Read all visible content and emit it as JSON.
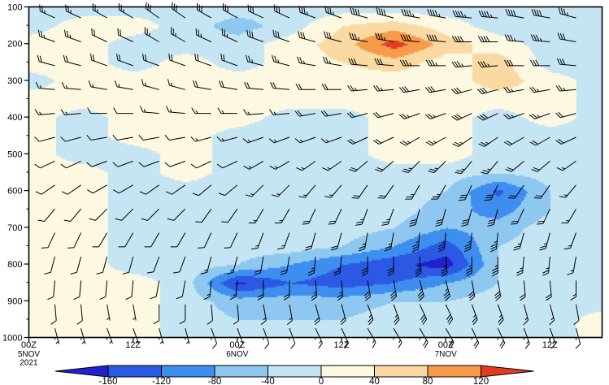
{
  "figure": {
    "background": "#ffffff",
    "frame_color": "#000000",
    "barb_color": "#000000"
  },
  "chart_data": {
    "type": "heatmap",
    "title": "",
    "xlabel": "",
    "ylabel": "",
    "x_range_hours": [
      0,
      66
    ],
    "y_range_pressure_hpa": [
      100,
      1000
    ],
    "x_minor_step_hours": 3,
    "legend_position": "bottom",
    "grid": false,
    "x_ticks": [
      {
        "hour": 0,
        "label": "00Z",
        "sub": [
          "5NOV",
          "2021"
        ]
      },
      {
        "hour": 12,
        "label": "12Z",
        "sub": []
      },
      {
        "hour": 24,
        "label": "00Z",
        "sub": [
          "6NOV"
        ]
      },
      {
        "hour": 36,
        "label": "12Z",
        "sub": []
      },
      {
        "hour": 48,
        "label": "00Z",
        "sub": [
          "7NOV"
        ]
      },
      {
        "hour": 60,
        "label": "12Z",
        "sub": []
      }
    ],
    "y_ticks": [
      "100",
      "200",
      "300",
      "400",
      "500",
      "600",
      "700",
      "800",
      "900",
      "1000"
    ],
    "x_hours": [
      0,
      6,
      12,
      18,
      24,
      30,
      36,
      42,
      48,
      54,
      60,
      66
    ],
    "pressure_levels": [
      100,
      150,
      200,
      250,
      300,
      350,
      400,
      450,
      500,
      550,
      600,
      650,
      700,
      750,
      800,
      850,
      900,
      950,
      1000
    ],
    "values": [
      [
        -20,
        -20,
        -20,
        -20,
        -20,
        -20,
        -20,
        -20,
        -20,
        -20,
        -20,
        -20
      ],
      [
        -20,
        20,
        20,
        -20,
        -60,
        -20,
        40,
        60,
        20,
        -20,
        -20,
        -20
      ],
      [
        20,
        20,
        -20,
        -20,
        -20,
        20,
        60,
        140,
        60,
        20,
        -20,
        -20
      ],
      [
        20,
        20,
        -20,
        20,
        -20,
        20,
        40,
        60,
        20,
        60,
        -20,
        -20
      ],
      [
        -20,
        20,
        20,
        20,
        20,
        20,
        20,
        20,
        20,
        60,
        20,
        -20
      ],
      [
        20,
        20,
        20,
        20,
        20,
        20,
        20,
        20,
        20,
        20,
        20,
        -20
      ],
      [
        20,
        -20,
        20,
        20,
        20,
        -20,
        -20,
        20,
        20,
        -20,
        20,
        -20
      ],
      [
        20,
        -20,
        20,
        20,
        -20,
        -20,
        -20,
        20,
        20,
        -20,
        -20,
        -20
      ],
      [
        20,
        -20,
        -20,
        20,
        -20,
        -20,
        -20,
        20,
        20,
        -20,
        -20,
        -20
      ],
      [
        20,
        20,
        -20,
        20,
        -20,
        -20,
        -20,
        -20,
        -20,
        -40,
        -20,
        -20
      ],
      [
        20,
        20,
        -20,
        -20,
        -20,
        -20,
        -20,
        -20,
        -40,
        -130,
        -40,
        -20
      ],
      [
        20,
        20,
        -20,
        -20,
        -20,
        -20,
        -20,
        -20,
        -60,
        -100,
        -40,
        -20
      ],
      [
        20,
        20,
        -20,
        -20,
        -20,
        -20,
        -20,
        -40,
        -80,
        -60,
        -20,
        -20
      ],
      [
        20,
        20,
        -20,
        -20,
        -20,
        -20,
        -40,
        -80,
        -140,
        -40,
        -20,
        -20
      ],
      [
        20,
        20,
        -20,
        -20,
        -40,
        -80,
        -120,
        -150,
        -180,
        -40,
        -20,
        -20
      ],
      [
        20,
        20,
        20,
        -20,
        -170,
        -120,
        -140,
        -120,
        -80,
        -40,
        -20,
        -20
      ],
      [
        20,
        20,
        20,
        -20,
        -60,
        -60,
        -60,
        -40,
        -40,
        -20,
        -20,
        -20
      ],
      [
        20,
        20,
        20,
        -20,
        -40,
        -40,
        -40,
        -20,
        -20,
        -20,
        -20,
        20
      ],
      [
        20,
        20,
        20,
        -20,
        -20,
        -20,
        -20,
        -20,
        -20,
        -20,
        -20,
        20
      ]
    ],
    "colorbar": {
      "boundaries": [
        -160,
        -120,
        -80,
        -40,
        0,
        40,
        80,
        120
      ],
      "labels": [
        "-160",
        "-120",
        "-80",
        "-40",
        "0",
        "40",
        "80",
        "120"
      ],
      "colors": [
        "#2121cd",
        "#2b59e3",
        "#3e8ef0",
        "#8ec8f0",
        "#c6e5f4",
        "#fdf8e1",
        "#fad9a2",
        "#f79a4a",
        "#e33d21"
      ]
    },
    "wind": {
      "units": "kt",
      "levels": [
        130,
        195,
        260,
        325,
        390,
        455,
        520,
        585,
        650,
        715,
        780,
        845,
        910,
        975
      ],
      "columns": [
        {
          "hour": 3,
          "barbs": [
            [
              295,
              25
            ],
            [
              290,
              25
            ],
            [
              285,
              20
            ],
            [
              275,
              15
            ],
            [
              265,
              15
            ],
            [
              255,
              10
            ],
            [
              245,
              10
            ],
            [
              235,
              10
            ],
            [
              220,
              10
            ],
            [
              205,
              10
            ],
            [
              195,
              10
            ],
            [
              185,
              10
            ],
            [
              175,
              10
            ],
            [
              165,
              5
            ]
          ]
        },
        {
          "hour": 9,
          "barbs": [
            [
              300,
              25
            ],
            [
              295,
              20
            ],
            [
              290,
              20
            ],
            [
              280,
              15
            ],
            [
              270,
              10
            ],
            [
              260,
              10
            ],
            [
              250,
              10
            ],
            [
              240,
              10
            ],
            [
              225,
              10
            ],
            [
              210,
              10
            ],
            [
              195,
              10
            ],
            [
              185,
              10
            ],
            [
              170,
              5
            ],
            [
              160,
              5
            ]
          ]
        },
        {
          "hour": 15,
          "barbs": [
            [
              305,
              30
            ],
            [
              300,
              25
            ],
            [
              290,
              20
            ],
            [
              285,
              15
            ],
            [
              275,
              15
            ],
            [
              260,
              10
            ],
            [
              250,
              10
            ],
            [
              235,
              10
            ],
            [
              225,
              10
            ],
            [
              210,
              10
            ],
            [
              200,
              10
            ],
            [
              190,
              10
            ],
            [
              180,
              10
            ],
            [
              165,
              5
            ]
          ]
        },
        {
          "hour": 21,
          "barbs": [
            [
              300,
              30
            ],
            [
              295,
              25
            ],
            [
              290,
              20
            ],
            [
              280,
              20
            ],
            [
              270,
              15
            ],
            [
              255,
              15
            ],
            [
              245,
              10
            ],
            [
              230,
              10
            ],
            [
              215,
              10
            ],
            [
              205,
              10
            ],
            [
              195,
              15
            ],
            [
              185,
              15
            ],
            [
              175,
              10
            ],
            [
              160,
              10
            ]
          ]
        },
        {
          "hour": 27,
          "barbs": [
            [
              295,
              30
            ],
            [
              290,
              30
            ],
            [
              285,
              25
            ],
            [
              275,
              20
            ],
            [
              265,
              15
            ],
            [
              250,
              15
            ],
            [
              240,
              15
            ],
            [
              225,
              15
            ],
            [
              210,
              15
            ],
            [
              200,
              15
            ],
            [
              190,
              20
            ],
            [
              180,
              20
            ],
            [
              170,
              15
            ],
            [
              160,
              10
            ]
          ]
        },
        {
          "hour": 33,
          "barbs": [
            [
              290,
              35
            ],
            [
              285,
              30
            ],
            [
              280,
              25
            ],
            [
              270,
              20
            ],
            [
              260,
              20
            ],
            [
              250,
              15
            ],
            [
              235,
              15
            ],
            [
              220,
              15
            ],
            [
              205,
              20
            ],
            [
              195,
              20
            ],
            [
              185,
              25
            ],
            [
              175,
              25
            ],
            [
              165,
              20
            ],
            [
              155,
              15
            ]
          ]
        },
        {
          "hour": 39,
          "barbs": [
            [
              285,
              40
            ],
            [
              280,
              35
            ],
            [
              275,
              30
            ],
            [
              265,
              25
            ],
            [
              255,
              20
            ],
            [
              245,
              20
            ],
            [
              230,
              20
            ],
            [
              215,
              20
            ],
            [
              200,
              25
            ],
            [
              190,
              25
            ],
            [
              180,
              30
            ],
            [
              170,
              30
            ],
            [
              160,
              25
            ],
            [
              150,
              15
            ]
          ]
        },
        {
          "hour": 45,
          "barbs": [
            [
              280,
              45
            ],
            [
              275,
              40
            ],
            [
              270,
              35
            ],
            [
              260,
              30
            ],
            [
              250,
              25
            ],
            [
              240,
              25
            ],
            [
              225,
              25
            ],
            [
              210,
              25
            ],
            [
              195,
              30
            ],
            [
              185,
              35
            ],
            [
              175,
              35
            ],
            [
              165,
              35
            ],
            [
              155,
              30
            ],
            [
              150,
              20
            ]
          ]
        },
        {
          "hour": 51,
          "barbs": [
            [
              275,
              45
            ],
            [
              270,
              40
            ],
            [
              265,
              35
            ],
            [
              255,
              30
            ],
            [
              245,
              30
            ],
            [
              235,
              25
            ],
            [
              220,
              25
            ],
            [
              205,
              30
            ],
            [
              195,
              30
            ],
            [
              185,
              35
            ],
            [
              180,
              35
            ],
            [
              170,
              30
            ],
            [
              160,
              25
            ],
            [
              155,
              20
            ]
          ]
        },
        {
          "hour": 57,
          "barbs": [
            [
              280,
              40
            ],
            [
              275,
              35
            ],
            [
              270,
              30
            ],
            [
              260,
              25
            ],
            [
              250,
              25
            ],
            [
              240,
              20
            ],
            [
              230,
              20
            ],
            [
              215,
              20
            ],
            [
              205,
              20
            ],
            [
              195,
              25
            ],
            [
              185,
              25
            ],
            [
              175,
              20
            ],
            [
              165,
              15
            ],
            [
              160,
              15
            ]
          ]
        },
        {
          "hour": 63,
          "barbs": [
            [
              285,
              35
            ],
            [
              280,
              30
            ],
            [
              275,
              30
            ],
            [
              265,
              25
            ],
            [
              255,
              20
            ],
            [
              245,
              20
            ],
            [
              235,
              15
            ],
            [
              220,
              15
            ],
            [
              210,
              15
            ],
            [
              200,
              15
            ],
            [
              190,
              15
            ],
            [
              180,
              15
            ],
            [
              170,
              10
            ],
            [
              165,
              10
            ]
          ]
        }
      ]
    }
  }
}
